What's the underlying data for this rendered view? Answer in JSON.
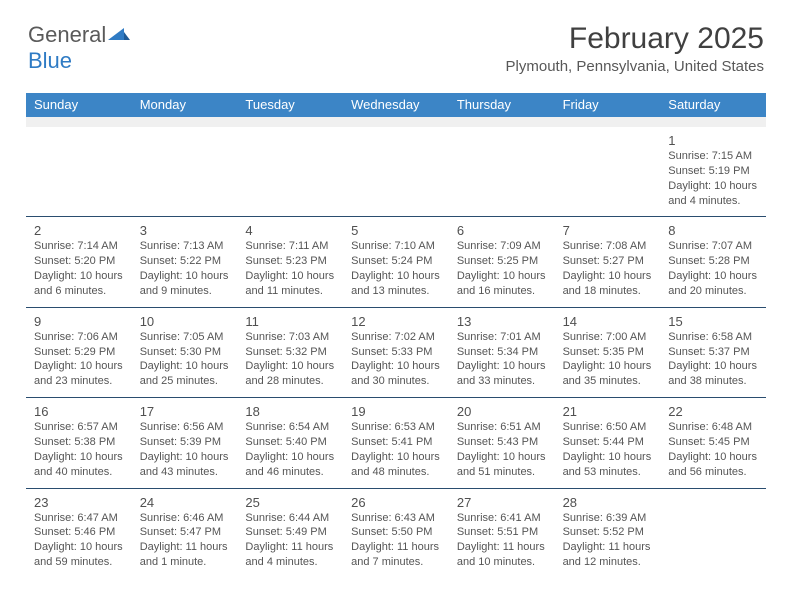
{
  "logo": {
    "word1": "General",
    "word2": "Blue",
    "mark_color": "#2f7bc4"
  },
  "title": "February 2025",
  "location": "Plymouth, Pennsylvania, United States",
  "day_headers": [
    "Sunday",
    "Monday",
    "Tuesday",
    "Wednesday",
    "Thursday",
    "Friday",
    "Saturday"
  ],
  "header_bg": "#3c85c6",
  "header_fg": "#ffffff",
  "spacer_bg": "#f0f0f0",
  "week_border": "#2a4d6f",
  "text_color": "#555555",
  "weeks": [
    [
      {
        "n": "",
        "sunrise": "",
        "sunset": "",
        "daylight": ""
      },
      {
        "n": "",
        "sunrise": "",
        "sunset": "",
        "daylight": ""
      },
      {
        "n": "",
        "sunrise": "",
        "sunset": "",
        "daylight": ""
      },
      {
        "n": "",
        "sunrise": "",
        "sunset": "",
        "daylight": ""
      },
      {
        "n": "",
        "sunrise": "",
        "sunset": "",
        "daylight": ""
      },
      {
        "n": "",
        "sunrise": "",
        "sunset": "",
        "daylight": ""
      },
      {
        "n": "1",
        "sunrise": "Sunrise: 7:15 AM",
        "sunset": "Sunset: 5:19 PM",
        "daylight": "Daylight: 10 hours and 4 minutes."
      }
    ],
    [
      {
        "n": "2",
        "sunrise": "Sunrise: 7:14 AM",
        "sunset": "Sunset: 5:20 PM",
        "daylight": "Daylight: 10 hours and 6 minutes."
      },
      {
        "n": "3",
        "sunrise": "Sunrise: 7:13 AM",
        "sunset": "Sunset: 5:22 PM",
        "daylight": "Daylight: 10 hours and 9 minutes."
      },
      {
        "n": "4",
        "sunrise": "Sunrise: 7:11 AM",
        "sunset": "Sunset: 5:23 PM",
        "daylight": "Daylight: 10 hours and 11 minutes."
      },
      {
        "n": "5",
        "sunrise": "Sunrise: 7:10 AM",
        "sunset": "Sunset: 5:24 PM",
        "daylight": "Daylight: 10 hours and 13 minutes."
      },
      {
        "n": "6",
        "sunrise": "Sunrise: 7:09 AM",
        "sunset": "Sunset: 5:25 PM",
        "daylight": "Daylight: 10 hours and 16 minutes."
      },
      {
        "n": "7",
        "sunrise": "Sunrise: 7:08 AM",
        "sunset": "Sunset: 5:27 PM",
        "daylight": "Daylight: 10 hours and 18 minutes."
      },
      {
        "n": "8",
        "sunrise": "Sunrise: 7:07 AM",
        "sunset": "Sunset: 5:28 PM",
        "daylight": "Daylight: 10 hours and 20 minutes."
      }
    ],
    [
      {
        "n": "9",
        "sunrise": "Sunrise: 7:06 AM",
        "sunset": "Sunset: 5:29 PM",
        "daylight": "Daylight: 10 hours and 23 minutes."
      },
      {
        "n": "10",
        "sunrise": "Sunrise: 7:05 AM",
        "sunset": "Sunset: 5:30 PM",
        "daylight": "Daylight: 10 hours and 25 minutes."
      },
      {
        "n": "11",
        "sunrise": "Sunrise: 7:03 AM",
        "sunset": "Sunset: 5:32 PM",
        "daylight": "Daylight: 10 hours and 28 minutes."
      },
      {
        "n": "12",
        "sunrise": "Sunrise: 7:02 AM",
        "sunset": "Sunset: 5:33 PM",
        "daylight": "Daylight: 10 hours and 30 minutes."
      },
      {
        "n": "13",
        "sunrise": "Sunrise: 7:01 AM",
        "sunset": "Sunset: 5:34 PM",
        "daylight": "Daylight: 10 hours and 33 minutes."
      },
      {
        "n": "14",
        "sunrise": "Sunrise: 7:00 AM",
        "sunset": "Sunset: 5:35 PM",
        "daylight": "Daylight: 10 hours and 35 minutes."
      },
      {
        "n": "15",
        "sunrise": "Sunrise: 6:58 AM",
        "sunset": "Sunset: 5:37 PM",
        "daylight": "Daylight: 10 hours and 38 minutes."
      }
    ],
    [
      {
        "n": "16",
        "sunrise": "Sunrise: 6:57 AM",
        "sunset": "Sunset: 5:38 PM",
        "daylight": "Daylight: 10 hours and 40 minutes."
      },
      {
        "n": "17",
        "sunrise": "Sunrise: 6:56 AM",
        "sunset": "Sunset: 5:39 PM",
        "daylight": "Daylight: 10 hours and 43 minutes."
      },
      {
        "n": "18",
        "sunrise": "Sunrise: 6:54 AM",
        "sunset": "Sunset: 5:40 PM",
        "daylight": "Daylight: 10 hours and 46 minutes."
      },
      {
        "n": "19",
        "sunrise": "Sunrise: 6:53 AM",
        "sunset": "Sunset: 5:41 PM",
        "daylight": "Daylight: 10 hours and 48 minutes."
      },
      {
        "n": "20",
        "sunrise": "Sunrise: 6:51 AM",
        "sunset": "Sunset: 5:43 PM",
        "daylight": "Daylight: 10 hours and 51 minutes."
      },
      {
        "n": "21",
        "sunrise": "Sunrise: 6:50 AM",
        "sunset": "Sunset: 5:44 PM",
        "daylight": "Daylight: 10 hours and 53 minutes."
      },
      {
        "n": "22",
        "sunrise": "Sunrise: 6:48 AM",
        "sunset": "Sunset: 5:45 PM",
        "daylight": "Daylight: 10 hours and 56 minutes."
      }
    ],
    [
      {
        "n": "23",
        "sunrise": "Sunrise: 6:47 AM",
        "sunset": "Sunset: 5:46 PM",
        "daylight": "Daylight: 10 hours and 59 minutes."
      },
      {
        "n": "24",
        "sunrise": "Sunrise: 6:46 AM",
        "sunset": "Sunset: 5:47 PM",
        "daylight": "Daylight: 11 hours and 1 minute."
      },
      {
        "n": "25",
        "sunrise": "Sunrise: 6:44 AM",
        "sunset": "Sunset: 5:49 PM",
        "daylight": "Daylight: 11 hours and 4 minutes."
      },
      {
        "n": "26",
        "sunrise": "Sunrise: 6:43 AM",
        "sunset": "Sunset: 5:50 PM",
        "daylight": "Daylight: 11 hours and 7 minutes."
      },
      {
        "n": "27",
        "sunrise": "Sunrise: 6:41 AM",
        "sunset": "Sunset: 5:51 PM",
        "daylight": "Daylight: 11 hours and 10 minutes."
      },
      {
        "n": "28",
        "sunrise": "Sunrise: 6:39 AM",
        "sunset": "Sunset: 5:52 PM",
        "daylight": "Daylight: 11 hours and 12 minutes."
      },
      {
        "n": "",
        "sunrise": "",
        "sunset": "",
        "daylight": ""
      }
    ]
  ]
}
